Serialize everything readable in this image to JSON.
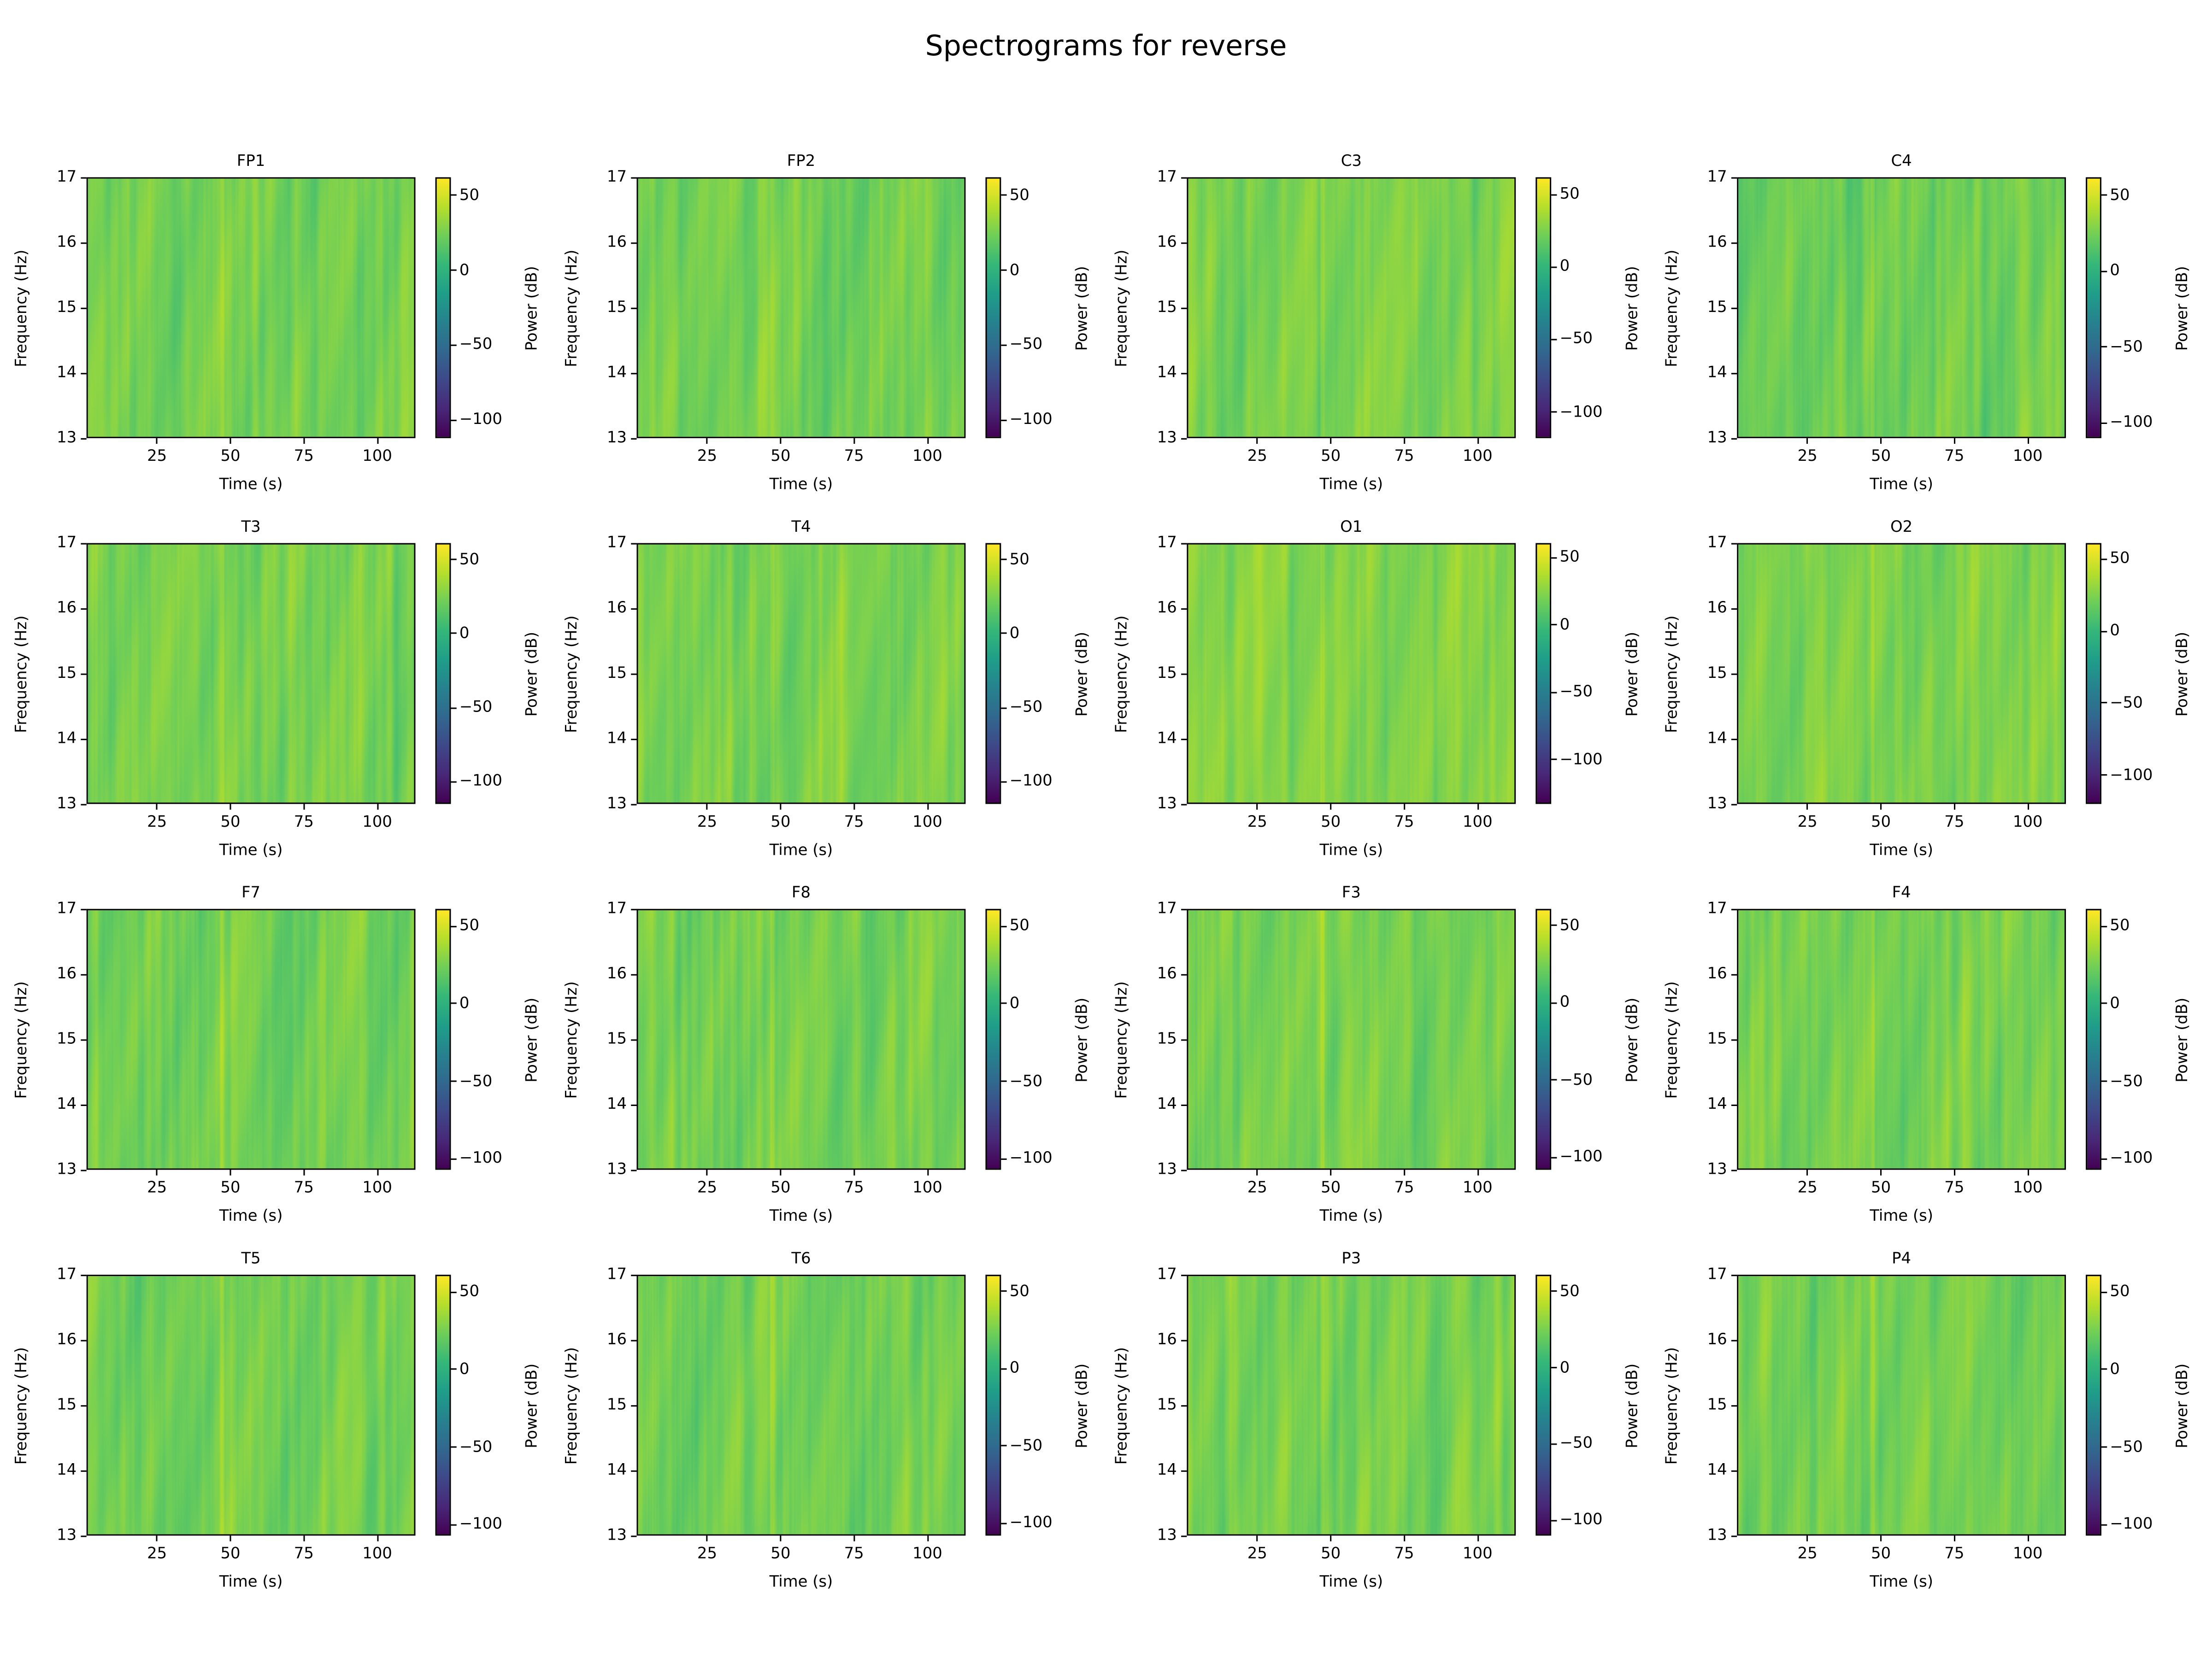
{
  "chart_data": {
    "type": "heatmap",
    "title": "Spectrograms for reverse",
    "layout": "4x4 grid",
    "colormap": "viridis",
    "xlabel": "Time (s)",
    "ylabel": "Frequency (Hz)",
    "colorbar_label": "Power (dB)",
    "xlim": [
      1,
      113
    ],
    "ylim": [
      13,
      17
    ],
    "xticks": [
      25,
      50,
      75,
      100
    ],
    "yticks": [
      13,
      14,
      15,
      16,
      17
    ],
    "colorbar_ticks": [
      50,
      0,
      -50,
      -100
    ],
    "colorbar_tick_labels": [
      "50",
      "0",
      "−50",
      "−100"
    ],
    "typical_power_db": [
      10,
      40
    ],
    "panels": [
      {
        "title": "FP1",
        "colorbar_range": [
          -112,
          62
        ]
      },
      {
        "title": "FP2",
        "colorbar_range": [
          -112,
          62
        ]
      },
      {
        "title": "C3",
        "colorbar_range": [
          -118,
          62
        ]
      },
      {
        "title": "C4",
        "colorbar_range": [
          -110,
          62
        ]
      },
      {
        "title": "T3",
        "colorbar_range": [
          -115,
          61
        ]
      },
      {
        "title": "T4",
        "colorbar_range": [
          -115,
          61
        ]
      },
      {
        "title": "O1",
        "colorbar_range": [
          -133,
          61
        ]
      },
      {
        "title": "O2",
        "colorbar_range": [
          -120,
          61
        ]
      },
      {
        "title": "F7",
        "colorbar_range": [
          -107,
          61
        ]
      },
      {
        "title": "F8",
        "colorbar_range": [
          -107,
          61
        ]
      },
      {
        "title": "F3",
        "colorbar_range": [
          -108,
          61
        ]
      },
      {
        "title": "F4",
        "colorbar_range": [
          -107,
          61
        ]
      },
      {
        "title": "T5",
        "colorbar_range": [
          -107,
          61
        ]
      },
      {
        "title": "T6",
        "colorbar_range": [
          -108,
          61
        ]
      },
      {
        "title": "P3",
        "colorbar_range": [
          -110,
          61
        ]
      },
      {
        "title": "P4",
        "colorbar_range": [
          -107,
          61
        ]
      }
    ]
  }
}
